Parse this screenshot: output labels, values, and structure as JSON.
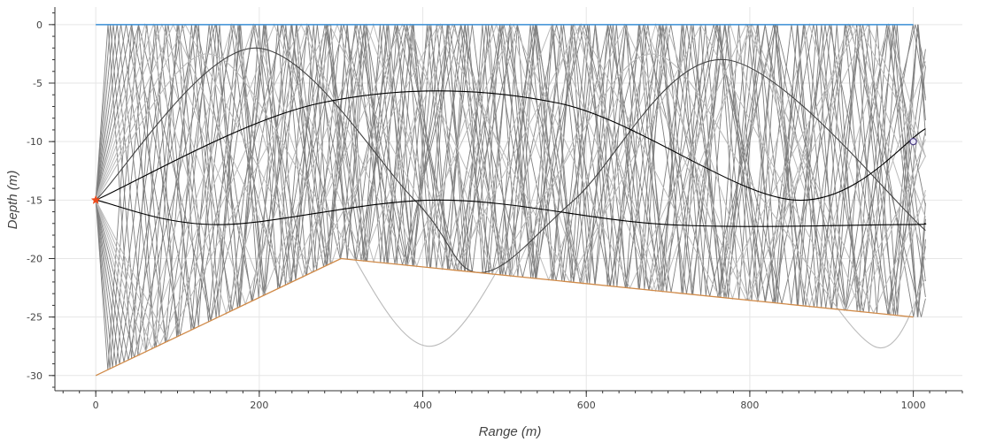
{
  "chart_data": {
    "type": "line",
    "title": "",
    "xlabel": "Range (m)",
    "ylabel": "Depth (m)",
    "xlim": [
      -50,
      1060
    ],
    "ylim": [
      -31.3,
      1.5
    ],
    "xticks": [
      0,
      200,
      400,
      600,
      800,
      1000
    ],
    "yticks": [
      0,
      -5,
      -10,
      -15,
      -20,
      -25,
      -30
    ],
    "x_minor_step": 20,
    "y_minor_step": 1,
    "grid": true,
    "colors": {
      "surface": "#3a8fd6",
      "bottom": "#d08a48",
      "source": "#ee4a1a",
      "receiver": "#4a3b80",
      "grid": "#e6e6e6",
      "ray_dense": "#808080",
      "ray_light": "#bbbbbb",
      "eigen_dark": "#000000",
      "eigen_mid": "#444444"
    },
    "surface": {
      "x": [
        0,
        1000
      ],
      "y": [
        0,
        0
      ]
    },
    "bathymetry": {
      "x": [
        0,
        300,
        1000
      ],
      "y": [
        -30,
        -20,
        -25
      ]
    },
    "source": {
      "x": 0,
      "y": -15
    },
    "receiver": {
      "x": 1000,
      "y": -10
    },
    "bounce_fan": {
      "angles_deg": [
        45,
        40,
        35,
        30,
        26,
        22,
        19,
        16,
        14,
        12,
        10.5,
        9,
        7.8
      ],
      "dense_fan_max_angle_deg": 16,
      "x_max": 1015
    },
    "refracted_rays": [
      {
        "name": "",
        "x": [
          0,
          136,
          272,
          408,
          544,
          680,
          816,
          952,
          1015
        ],
        "y": [
          -15,
          -2.5,
          -15,
          -27.5,
          -15,
          -2.5,
          -15,
          -27.5,
          -21.7
        ],
        "style": "light"
      },
      {
        "name": "",
        "x": [
          0,
          195,
          390,
          470,
          585,
          770,
          1015
        ],
        "y": [
          -15,
          -2,
          -15,
          -21.2,
          -15,
          -3,
          -17.6
        ],
        "style": "mid"
      },
      {
        "name": "",
        "x": [
          0,
          275,
          565,
          855,
          1015
        ],
        "y": [
          -15,
          -6.7,
          -6.7,
          -15,
          -8.9
        ],
        "style": "dark"
      },
      {
        "name": "",
        "x": [
          0,
          150,
          420,
          700,
          980,
          1015
        ],
        "y": [
          -15,
          -17.1,
          -15,
          -17.1,
          -17.1,
          -17
        ],
        "style": "dark"
      }
    ]
  }
}
